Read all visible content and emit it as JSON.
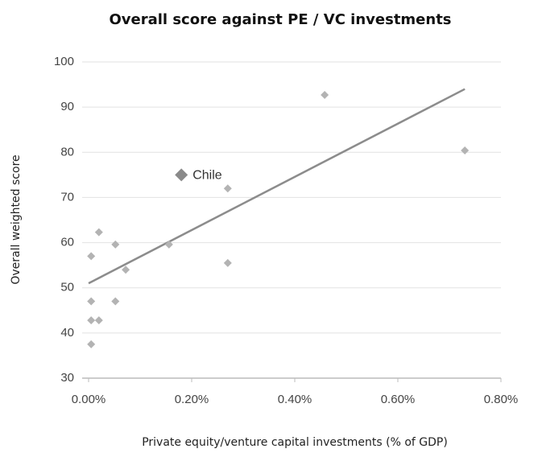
{
  "chart_data": {
    "type": "scatter",
    "title": "Overall score against PE / VC investments",
    "xlabel": "Private equity/venture capital investments (% of GDP)",
    "ylabel": "Overall weighted score",
    "x": [
      0.005,
      0.02,
      0.052,
      0.072,
      0.005,
      0.052,
      0.005,
      0.02,
      0.005,
      0.156,
      0.27,
      0.27,
      0.458,
      0.73
    ],
    "values": [
      57,
      62.3,
      59.6,
      54,
      47,
      47,
      42.8,
      42.8,
      37.5,
      59.6,
      72,
      55.5,
      92.7,
      80.4
    ],
    "color": "#b3b3b3",
    "highlight": {
      "label": "Chile",
      "x": 0.18,
      "value": 75,
      "color": "#8a8a8a"
    },
    "trend": {
      "x": [
        0,
        0.73
      ],
      "values": [
        51,
        94
      ],
      "color": "#8c8c8c"
    },
    "xlim": [
      0,
      0.8
    ],
    "xticks": [
      {
        "value": 0,
        "label": "0.00%"
      },
      {
        "value": 0.2,
        "label": "0.20%"
      },
      {
        "value": 0.4,
        "label": "0.40%"
      },
      {
        "value": 0.6,
        "label": "0.60%"
      },
      {
        "value": 0.8,
        "label": "0.80%"
      }
    ],
    "ylim": [
      30,
      100
    ],
    "yticks": [
      30,
      40,
      50,
      60,
      70,
      80,
      90,
      100
    ],
    "grid": true
  }
}
